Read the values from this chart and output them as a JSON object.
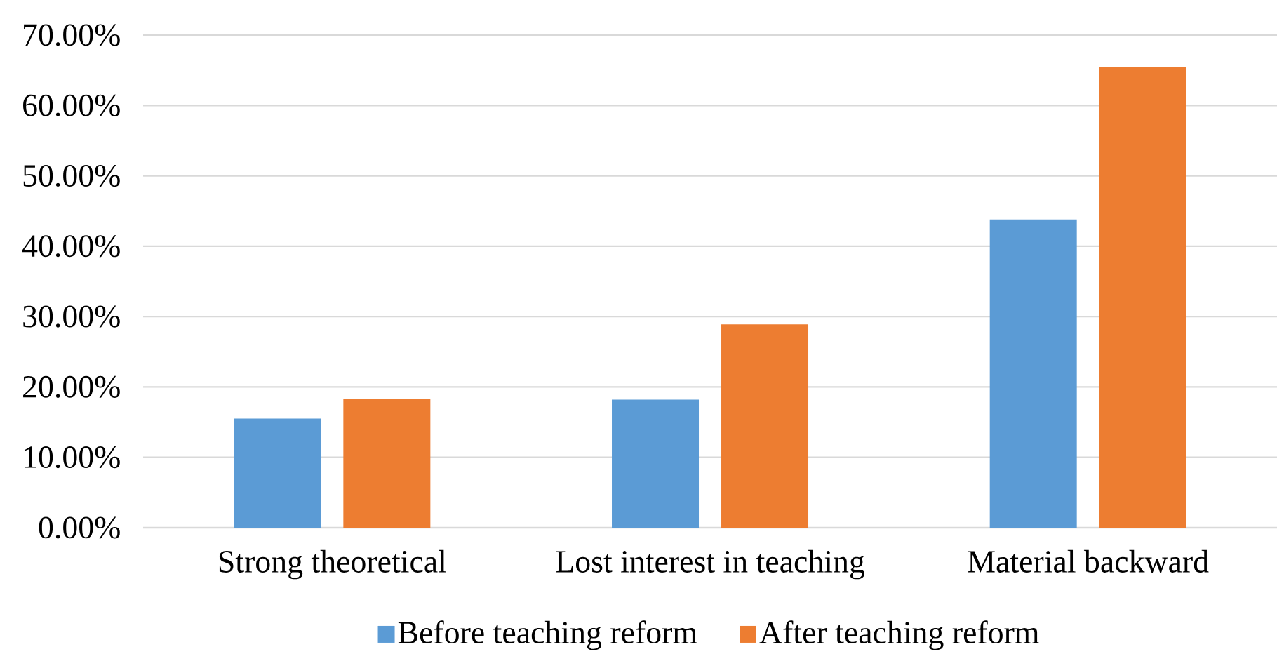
{
  "chart_data": {
    "type": "bar",
    "categories": [
      "Strong theoretical",
      "Lost interest in teaching",
      "Material backward"
    ],
    "series": [
      {
        "name": "Before teaching reform",
        "color": "#5b9bd5",
        "values": [
          15.5,
          18.2,
          43.8
        ]
      },
      {
        "name": "After teaching reform",
        "color": "#ed7d31",
        "values": [
          18.3,
          28.9,
          65.4
        ]
      }
    ],
    "ylim": [
      0,
      70
    ],
    "yticks": [
      {
        "value": 0,
        "label": "0.00%"
      },
      {
        "value": 10,
        "label": "10.00%"
      },
      {
        "value": 20,
        "label": "20.00%"
      },
      {
        "value": 30,
        "label": "30.00%"
      },
      {
        "value": 40,
        "label": "40.00%"
      },
      {
        "value": 50,
        "label": "50.00%"
      },
      {
        "value": 60,
        "label": "60.00%"
      },
      {
        "value": 70,
        "label": "70.00%"
      }
    ],
    "grid": "y",
    "legend": "bottom"
  }
}
